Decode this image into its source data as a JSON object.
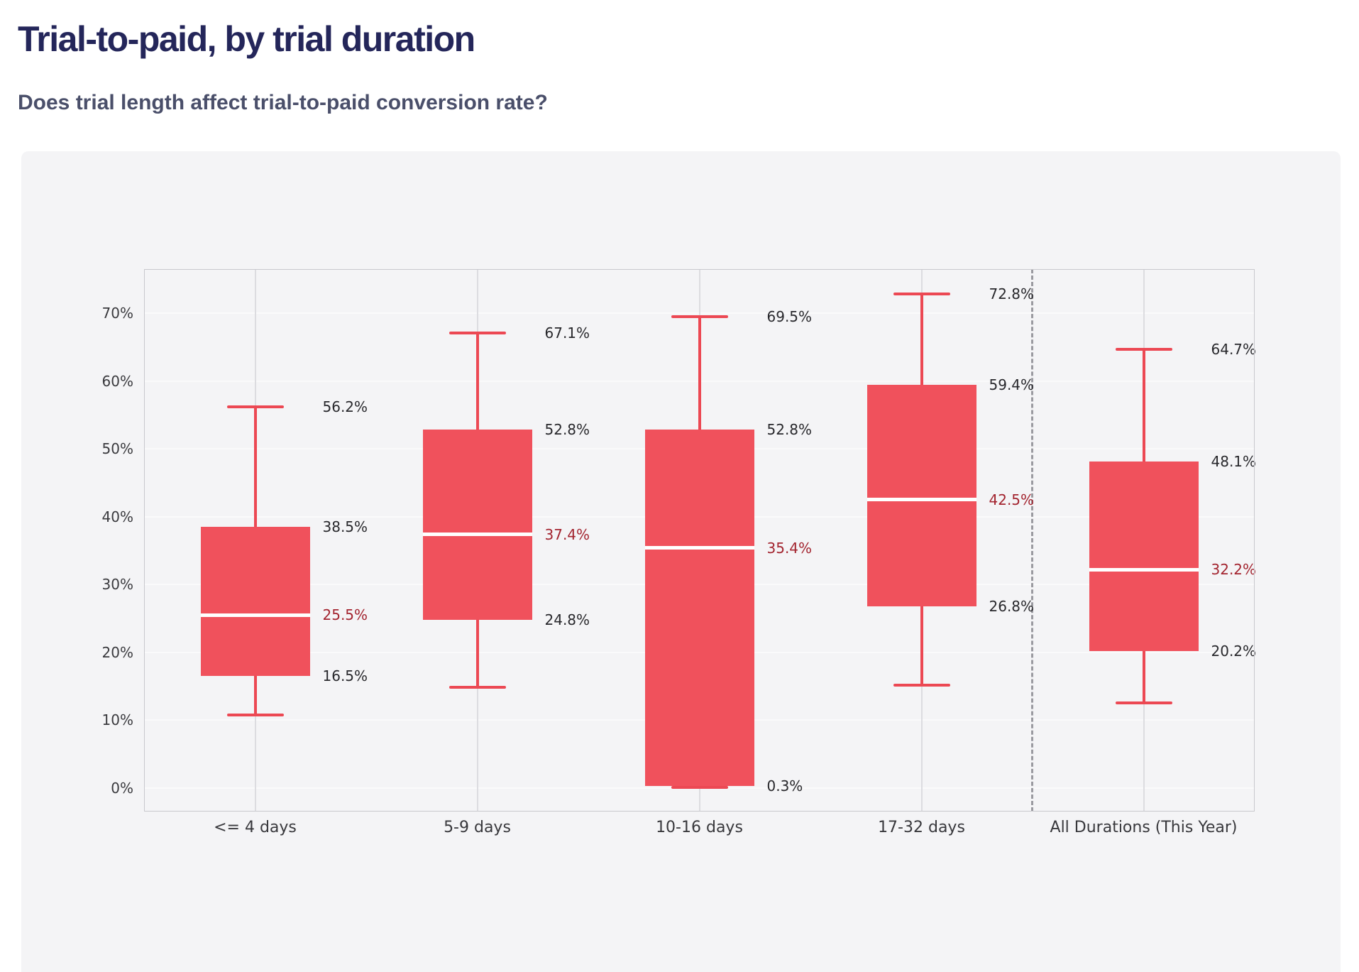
{
  "header": {
    "title": "Trial-to-paid, by trial duration",
    "subtitle": "Does trial length affect trial-to-paid conversion rate?"
  },
  "chart_data": {
    "type": "boxplot",
    "title": "Trial-to-paid, by trial duration",
    "subtitle": "Does trial length affect trial-to-paid conversion rate?",
    "xlabel": "",
    "ylabel": "",
    "y_axis": {
      "range_percent": [
        -3.4,
        76.5
      ],
      "grid": true,
      "ticks": [
        {
          "value": 0,
          "label": "0%"
        },
        {
          "value": 10,
          "label": "10%"
        },
        {
          "value": 20,
          "label": "20%"
        },
        {
          "value": 30,
          "label": "30%"
        },
        {
          "value": 40,
          "label": "40%"
        },
        {
          "value": 50,
          "label": "50%"
        },
        {
          "value": 60,
          "label": "60%"
        },
        {
          "value": 70,
          "label": "70%"
        }
      ]
    },
    "categories": [
      "<= 4 days",
      "5-9 days",
      "10-16 days",
      "17-32 days",
      "All Durations (This Year)"
    ],
    "series": [
      {
        "category": "<= 4 days",
        "min": 10.8,
        "q1": 16.5,
        "median": 25.5,
        "q3": 38.5,
        "max": 56.2,
        "labels": {
          "max": "56.2%",
          "q3": "38.5%",
          "median": "25.5%",
          "q1": "16.5%"
        }
      },
      {
        "category": "5-9 days",
        "min": 14.9,
        "q1": 24.8,
        "median": 37.4,
        "q3": 52.8,
        "max": 67.1,
        "labels": {
          "max": "67.1%",
          "q3": "52.8%",
          "median": "37.4%",
          "q1": "24.8%"
        }
      },
      {
        "category": "10-16 days",
        "min": 0.1,
        "q1": 0.3,
        "median": 35.4,
        "q3": 52.8,
        "max": 69.5,
        "labels": {
          "max": "69.5%",
          "q3": "52.8%",
          "median": "35.4%",
          "q1": "0.3%"
        }
      },
      {
        "category": "17-32 days",
        "min": 15.2,
        "q1": 26.8,
        "median": 42.5,
        "q3": 59.4,
        "max": 72.8,
        "labels": {
          "max": "72.8%",
          "q3": "59.4%",
          "median": "42.5%",
          "q1": "26.8%"
        }
      },
      {
        "category": "All Durations (This Year)",
        "min": 12.6,
        "q1": 20.2,
        "median": 32.2,
        "q3": 48.1,
        "max": 64.7,
        "labels": {
          "max": "64.7%",
          "q3": "48.1%",
          "median": "32.2%",
          "q1": "20.2%"
        }
      }
    ],
    "separator": {
      "after_category": "17-32 days",
      "style": "dashed"
    },
    "legend": null,
    "colors": {
      "box_fill": "#F0515C",
      "whisker": "#EC4853",
      "median_line": "#FFFFFF",
      "value_label": "#28282C",
      "median_label": "#A3242F",
      "tick_label": "#3A3A3E",
      "category_label": "#38383C",
      "panel_bg": "#F4F4F6",
      "grid_h": "#FAFAFB",
      "grid_v": "#DCDCE0",
      "plot_border": "#C8C8CD",
      "separator": "#9A9AA0",
      "title": "#24265A",
      "subtitle": "#4A4F6A"
    }
  }
}
